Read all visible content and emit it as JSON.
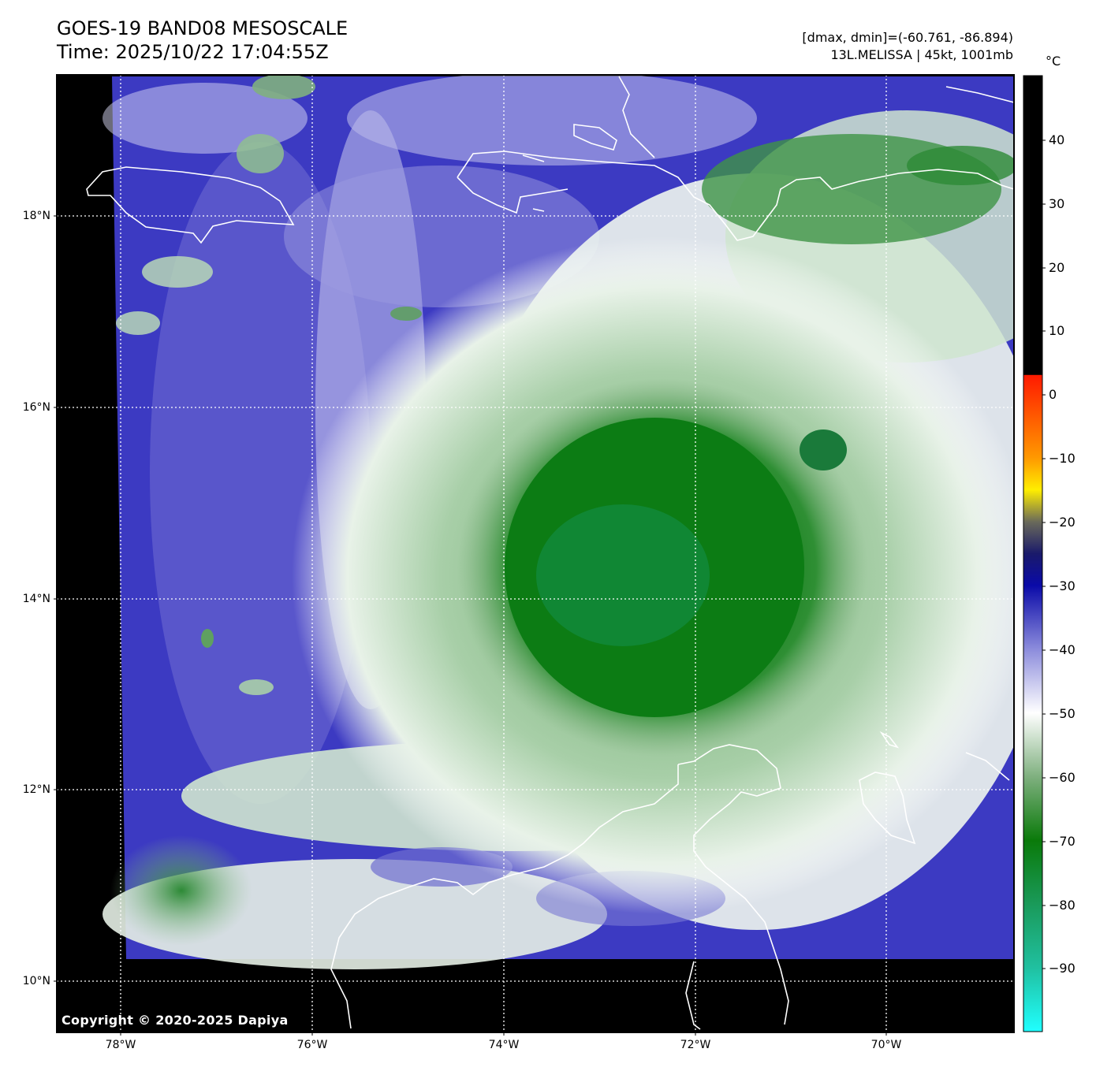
{
  "header": {
    "title_line1": "GOES-19 BAND08 MESOSCALE",
    "title_line2": "Time: 2025/10/22 17:04:55Z",
    "dmax_dmin": "[dmax, dmin]=(-60.761, -86.894)",
    "storm_info": "13L.MELISSA | 45kt, 1001mb"
  },
  "map": {
    "lat_labels": [
      "18°N",
      "16°N",
      "14°N",
      "12°N",
      "10°N"
    ],
    "lon_labels": [
      "78°W",
      "76°W",
      "74°W",
      "72°W",
      "70°W"
    ],
    "copyright": "Copyright © 2020-2025 Dapiya"
  },
  "colorbar": {
    "unit": "°C",
    "ticks": [
      "40",
      "30",
      "20",
      "10",
      "0",
      "−10",
      "−20",
      "−30",
      "−40",
      "−50",
      "−60",
      "−70",
      "−80",
      "−90"
    ],
    "range": [
      -100,
      50
    ],
    "stops": [
      {
        "value": 3,
        "color": "#ff1a00"
      },
      {
        "value": -10,
        "color": "#ff9900"
      },
      {
        "value": -15,
        "color": "#ffee00"
      },
      {
        "value": -20,
        "color": "#6a6a5a"
      },
      {
        "value": -25,
        "color": "#1a1a6a"
      },
      {
        "value": -30,
        "color": "#0a0aa8"
      },
      {
        "value": -40,
        "color": "#8c8cdc"
      },
      {
        "value": -50,
        "color": "#ffffff"
      },
      {
        "value": -60,
        "color": "#7fb07f"
      },
      {
        "value": -70,
        "color": "#0a7a0a"
      },
      {
        "value": -80,
        "color": "#1a9a5a"
      },
      {
        "value": -90,
        "color": "#20c0a0"
      },
      {
        "value": -100,
        "color": "#20ffff"
      }
    ],
    "warm_color": "#000000"
  },
  "colors": {
    "storm_green": "#0d7d14",
    "clear_blue": "#3a38c0",
    "coast": "#ffffff"
  }
}
